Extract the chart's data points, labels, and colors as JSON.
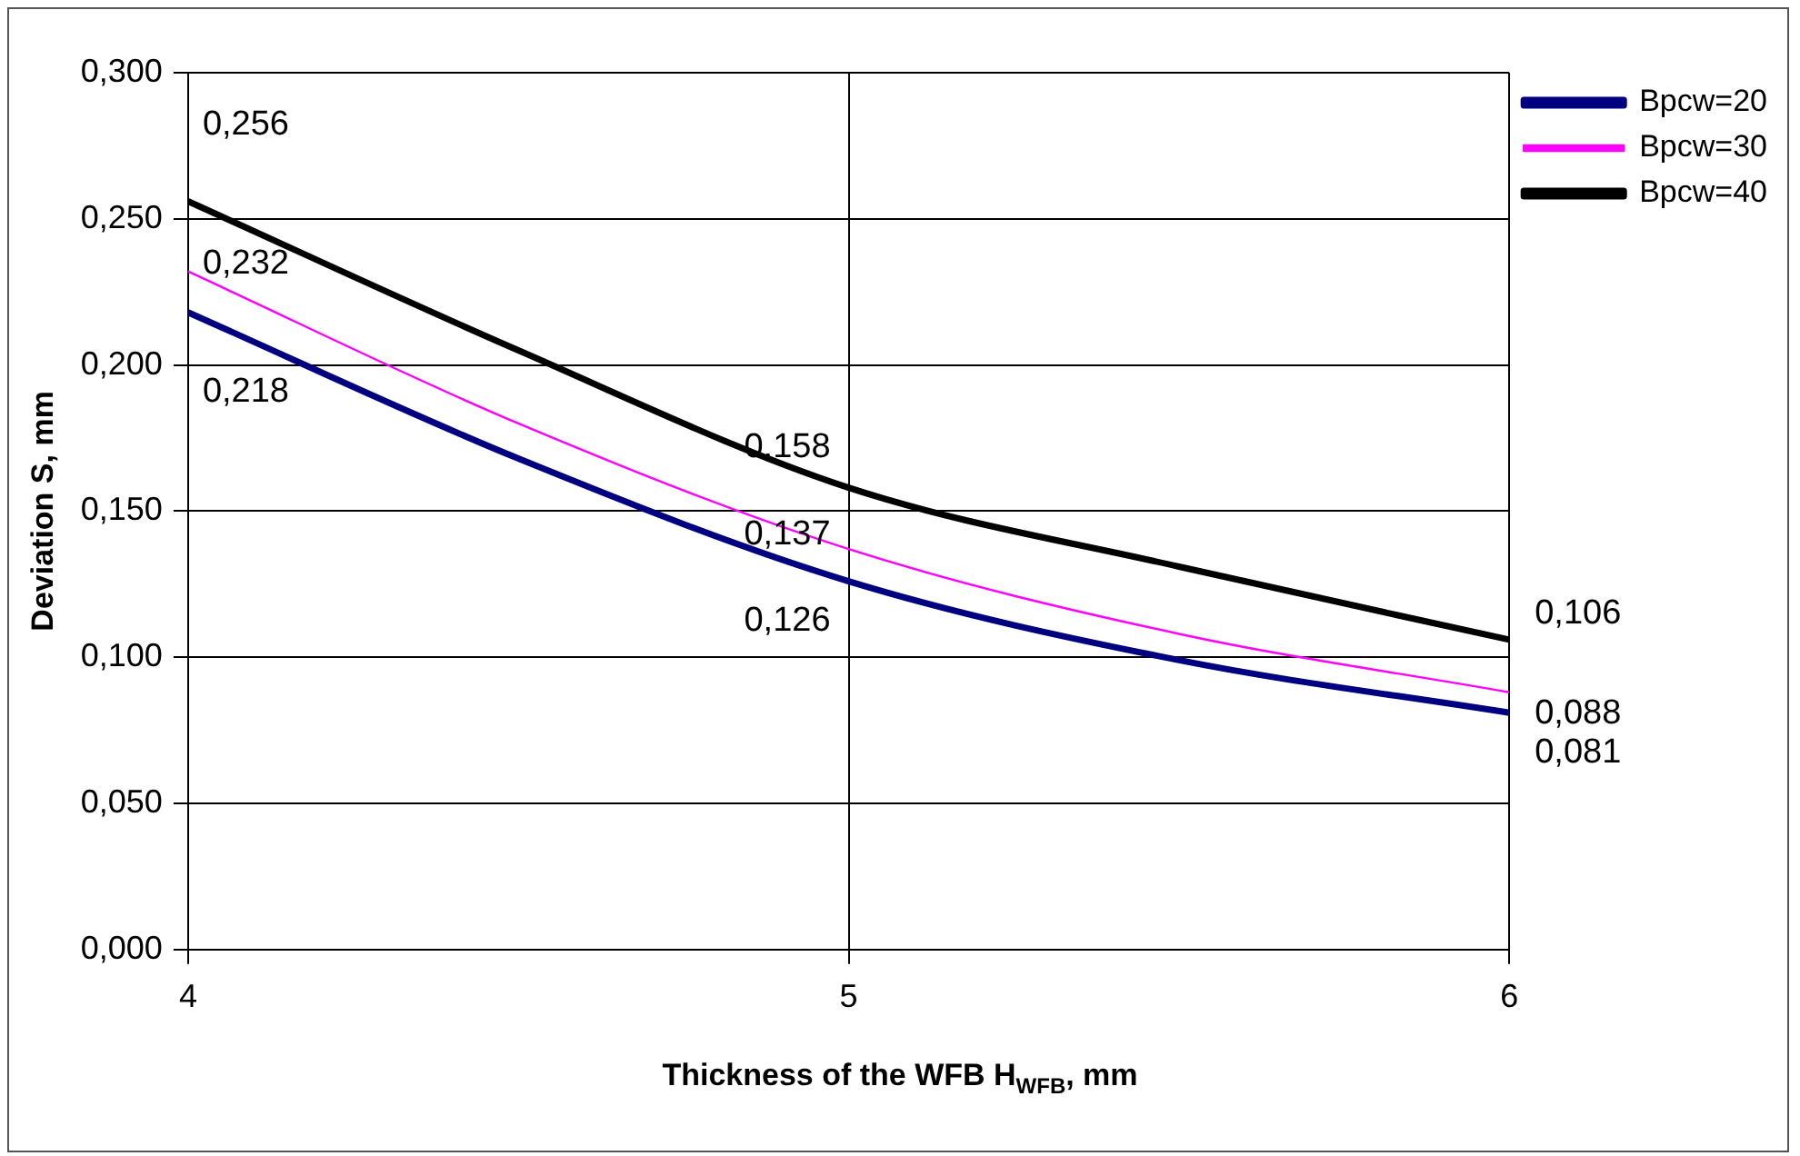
{
  "chart_data": {
    "type": "line",
    "xlabel": "Thickness of the WFB H$_{WFB}$, mm",
    "ylabel": "Deviation S, mm",
    "x": [
      4,
      4.5,
      5,
      5.5,
      6
    ],
    "series": [
      {
        "name": "Bpcw=20",
        "color": "#000080",
        "values": [
          0.218,
          0.168,
          0.126,
          0.099,
          0.081
        ],
        "value_labels": [
          "0,218",
          null,
          "0,126",
          null,
          "0,081"
        ]
      },
      {
        "name": "Bpcw=30",
        "color": "#ff00ff",
        "values": [
          0.232,
          0.18,
          0.137,
          0.108,
          0.088
        ],
        "value_labels": [
          "0,232",
          null,
          "0,137",
          null,
          "0,088"
        ]
      },
      {
        "name": "Bpcw=40",
        "color": "#000000",
        "values": [
          0.256,
          0.205,
          0.158,
          0.131,
          0.106
        ],
        "value_labels": [
          "0,256",
          null,
          "0,158",
          null,
          "0,106"
        ]
      }
    ],
    "xlim": [
      4,
      6
    ],
    "xticks": [
      4,
      5,
      6
    ],
    "ylim": [
      0,
      0.3
    ],
    "yticks": [
      {
        "value": 0,
        "label": "0,000"
      },
      {
        "value": 0.05,
        "label": "0,050"
      },
      {
        "value": 0.1,
        "label": "0,100"
      },
      {
        "value": 0.15,
        "label": "0,150"
      },
      {
        "value": 0.2,
        "label": "0,200"
      },
      {
        "value": 0.25,
        "label": "0,250"
      },
      {
        "value": 0.3,
        "label": "0,300"
      }
    ],
    "grid": true,
    "legend": "right",
    "marker": "none",
    "line_style": "solid"
  }
}
